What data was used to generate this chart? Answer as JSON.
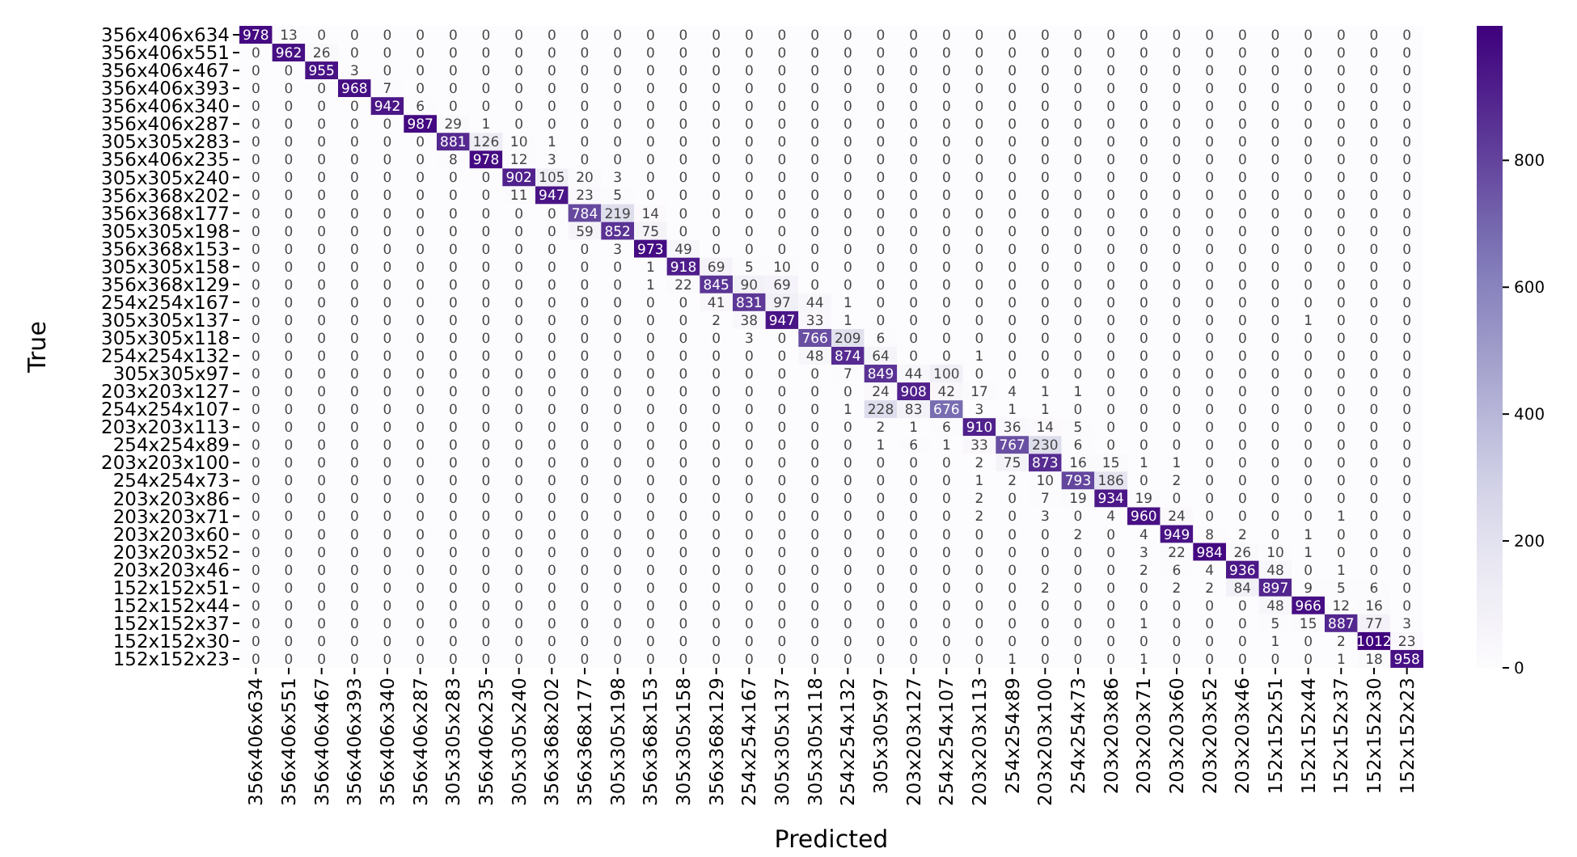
{
  "chart_data": {
    "type": "heatmap",
    "xlabel": "Predicted",
    "ylabel": "True",
    "categories": [
      "356x406x634",
      "356x406x551",
      "356x406x467",
      "356x406x393",
      "356x406x340",
      "356x406x287",
      "305x305x283",
      "356x406x235",
      "305x305x240",
      "356x368x202",
      "356x368x177",
      "305x305x198",
      "356x368x153",
      "305x305x158",
      "356x368x129",
      "254x254x167",
      "305x305x137",
      "305x305x118",
      "254x254x132",
      "305x305x97",
      "203x203x127",
      "254x254x107",
      "203x203x113",
      "254x254x89",
      "203x203x100",
      "254x254x73",
      "203x203x86",
      "203x203x71",
      "203x203x60",
      "203x203x52",
      "203x203x46",
      "152x152x51",
      "152x152x44",
      "152x152x37",
      "152x152x30",
      "152x152x23"
    ],
    "y_categories": [
      "356x406x634",
      "356x406x551",
      "356x406x467",
      "356x406x393",
      "356x406x340",
      "356x406x287",
      "305x305x283",
      "356x406x235",
      "305x305x240",
      "356x368x202",
      "356x368x177",
      "305x305x198",
      "356x368x153",
      "305x305x158",
      "356x368x129",
      "254x254x167",
      "305x305x137",
      "305x305x118",
      "254x254x132",
      "305x305x97",
      "203x203x127",
      "254x254x107",
      "203x203x113",
      "254x254x89",
      "203x203x100",
      "254x254x73",
      "203x203x86",
      "203x203x71",
      "203x203x60",
      "203x203x52",
      "203x203x46",
      "152x152x51",
      "152x152x44",
      "152x152x37",
      "152x152x30",
      "152x152x23"
    ],
    "cells": [
      [
        978,
        13,
        0,
        0,
        0,
        0,
        0,
        0,
        0,
        0,
        0,
        0,
        0,
        0,
        0,
        0,
        0,
        0,
        0,
        0,
        0,
        0,
        0,
        0,
        0,
        0,
        0,
        0,
        0,
        0,
        0,
        0,
        0,
        0,
        0,
        0
      ],
      [
        0,
        962,
        26,
        0,
        0,
        0,
        0,
        0,
        0,
        0,
        0,
        0,
        0,
        0,
        0,
        0,
        0,
        0,
        0,
        0,
        0,
        0,
        0,
        0,
        0,
        0,
        0,
        0,
        0,
        0,
        0,
        0,
        0,
        0,
        0,
        0
      ],
      [
        0,
        0,
        955,
        3,
        0,
        0,
        0,
        0,
        0,
        0,
        0,
        0,
        0,
        0,
        0,
        0,
        0,
        0,
        0,
        0,
        0,
        0,
        0,
        0,
        0,
        0,
        0,
        0,
        0,
        0,
        0,
        0,
        0,
        0,
        0,
        0
      ],
      [
        0,
        0,
        0,
        968,
        7,
        0,
        0,
        0,
        0,
        0,
        0,
        0,
        0,
        0,
        0,
        0,
        0,
        0,
        0,
        0,
        0,
        0,
        0,
        0,
        0,
        0,
        0,
        0,
        0,
        0,
        0,
        0,
        0,
        0,
        0,
        0
      ],
      [
        0,
        0,
        0,
        0,
        942,
        6,
        0,
        0,
        0,
        0,
        0,
        0,
        0,
        0,
        0,
        0,
        0,
        0,
        0,
        0,
        0,
        0,
        0,
        0,
        0,
        0,
        0,
        0,
        0,
        0,
        0,
        0,
        0,
        0,
        0,
        0
      ],
      [
        0,
        0,
        0,
        0,
        0,
        987,
        29,
        1,
        0,
        0,
        0,
        0,
        0,
        0,
        0,
        0,
        0,
        0,
        0,
        0,
        0,
        0,
        0,
        0,
        0,
        0,
        0,
        0,
        0,
        0,
        0,
        0,
        0,
        0,
        0,
        0
      ],
      [
        0,
        0,
        0,
        0,
        0,
        0,
        881,
        126,
        10,
        1,
        0,
        0,
        0,
        0,
        0,
        0,
        0,
        0,
        0,
        0,
        0,
        0,
        0,
        0,
        0,
        0,
        0,
        0,
        0,
        0,
        0,
        0,
        0,
        0,
        0,
        0
      ],
      [
        0,
        0,
        0,
        0,
        0,
        0,
        8,
        978,
        12,
        3,
        0,
        0,
        0,
        0,
        0,
        0,
        0,
        0,
        0,
        0,
        0,
        0,
        0,
        0,
        0,
        0,
        0,
        0,
        0,
        0,
        0,
        0,
        0,
        0,
        0,
        0
      ],
      [
        0,
        0,
        0,
        0,
        0,
        0,
        0,
        0,
        902,
        105,
        20,
        3,
        0,
        0,
        0,
        0,
        0,
        0,
        0,
        0,
        0,
        0,
        0,
        0,
        0,
        0,
        0,
        0,
        0,
        0,
        0,
        0,
        0,
        0,
        0,
        0
      ],
      [
        0,
        0,
        0,
        0,
        0,
        0,
        0,
        0,
        11,
        947,
        23,
        5,
        0,
        0,
        0,
        0,
        0,
        0,
        0,
        0,
        0,
        0,
        0,
        0,
        0,
        0,
        0,
        0,
        0,
        0,
        0,
        0,
        0,
        0,
        0,
        0
      ],
      [
        0,
        0,
        0,
        0,
        0,
        0,
        0,
        0,
        0,
        0,
        784,
        219,
        14,
        0,
        0,
        0,
        0,
        0,
        0,
        0,
        0,
        0,
        0,
        0,
        0,
        0,
        0,
        0,
        0,
        0,
        0,
        0,
        0,
        0,
        0,
        0
      ],
      [
        0,
        0,
        0,
        0,
        0,
        0,
        0,
        0,
        0,
        0,
        59,
        852,
        75,
        0,
        0,
        0,
        0,
        0,
        0,
        0,
        0,
        0,
        0,
        0,
        0,
        0,
        0,
        0,
        0,
        0,
        0,
        0,
        0,
        0,
        0,
        0
      ],
      [
        0,
        0,
        0,
        0,
        0,
        0,
        0,
        0,
        0,
        0,
        0,
        3,
        973,
        49,
        0,
        0,
        0,
        0,
        0,
        0,
        0,
        0,
        0,
        0,
        0,
        0,
        0,
        0,
        0,
        0,
        0,
        0,
        0,
        0,
        0,
        0
      ],
      [
        0,
        0,
        0,
        0,
        0,
        0,
        0,
        0,
        0,
        0,
        0,
        0,
        1,
        918,
        69,
        5,
        10,
        0,
        0,
        0,
        0,
        0,
        0,
        0,
        0,
        0,
        0,
        0,
        0,
        0,
        0,
        0,
        0,
        0,
        0,
        0
      ],
      [
        0,
        0,
        0,
        0,
        0,
        0,
        0,
        0,
        0,
        0,
        0,
        0,
        1,
        22,
        845,
        90,
        69,
        0,
        0,
        0,
        0,
        0,
        0,
        0,
        0,
        0,
        0,
        0,
        0,
        0,
        0,
        0,
        0,
        0,
        0,
        0
      ],
      [
        0,
        0,
        0,
        0,
        0,
        0,
        0,
        0,
        0,
        0,
        0,
        0,
        0,
        0,
        41,
        831,
        97,
        44,
        1,
        0,
        0,
        0,
        0,
        0,
        0,
        0,
        0,
        0,
        0,
        0,
        0,
        0,
        0,
        0,
        0,
        0
      ],
      [
        0,
        0,
        0,
        0,
        0,
        0,
        0,
        0,
        0,
        0,
        0,
        0,
        0,
        0,
        2,
        38,
        947,
        33,
        1,
        0,
        0,
        0,
        0,
        0,
        0,
        0,
        0,
        0,
        0,
        0,
        0,
        0,
        1,
        0,
        0,
        0
      ],
      [
        0,
        0,
        0,
        0,
        0,
        0,
        0,
        0,
        0,
        0,
        0,
        0,
        0,
        0,
        0,
        3,
        0,
        766,
        209,
        6,
        0,
        0,
        0,
        0,
        0,
        0,
        0,
        0,
        0,
        0,
        0,
        0,
        0,
        0,
        0,
        0
      ],
      [
        0,
        0,
        0,
        0,
        0,
        0,
        0,
        0,
        0,
        0,
        0,
        0,
        0,
        0,
        0,
        0,
        0,
        48,
        874,
        64,
        0,
        0,
        1,
        0,
        0,
        0,
        0,
        0,
        0,
        0,
        0,
        0,
        0,
        0,
        0,
        0
      ],
      [
        0,
        0,
        0,
        0,
        0,
        0,
        0,
        0,
        0,
        0,
        0,
        0,
        0,
        0,
        0,
        0,
        0,
        0,
        7,
        849,
        44,
        100,
        0,
        0,
        0,
        0,
        0,
        0,
        0,
        0,
        0,
        0,
        0,
        0,
        0,
        0
      ],
      [
        0,
        0,
        0,
        0,
        0,
        0,
        0,
        0,
        0,
        0,
        0,
        0,
        0,
        0,
        0,
        0,
        0,
        0,
        0,
        24,
        908,
        42,
        17,
        4,
        1,
        1,
        0,
        0,
        0,
        0,
        0,
        0,
        0,
        0,
        0,
        0
      ],
      [
        0,
        0,
        0,
        0,
        0,
        0,
        0,
        0,
        0,
        0,
        0,
        0,
        0,
        0,
        0,
        0,
        0,
        0,
        1,
        228,
        83,
        676,
        3,
        1,
        1,
        0,
        0,
        0,
        0,
        0,
        0,
        0,
        0,
        0,
        0,
        0
      ],
      [
        0,
        0,
        0,
        0,
        0,
        0,
        0,
        0,
        0,
        0,
        0,
        0,
        0,
        0,
        0,
        0,
        0,
        0,
        0,
        2,
        1,
        6,
        910,
        36,
        14,
        5,
        0,
        0,
        0,
        0,
        0,
        0,
        0,
        0,
        0,
        0
      ],
      [
        0,
        0,
        0,
        0,
        0,
        0,
        0,
        0,
        0,
        0,
        0,
        0,
        0,
        0,
        0,
        0,
        0,
        0,
        0,
        1,
        6,
        1,
        33,
        767,
        230,
        6,
        0,
        0,
        0,
        0,
        0,
        0,
        0,
        0,
        0,
        0
      ],
      [
        0,
        0,
        0,
        0,
        0,
        0,
        0,
        0,
        0,
        0,
        0,
        0,
        0,
        0,
        0,
        0,
        0,
        0,
        0,
        0,
        0,
        0,
        2,
        75,
        873,
        16,
        15,
        1,
        1,
        0,
        0,
        0,
        0,
        0,
        0,
        0
      ],
      [
        0,
        0,
        0,
        0,
        0,
        0,
        0,
        0,
        0,
        0,
        0,
        0,
        0,
        0,
        0,
        0,
        0,
        0,
        0,
        0,
        0,
        0,
        1,
        2,
        10,
        793,
        186,
        0,
        2,
        0,
        0,
        0,
        0,
        0,
        0,
        0
      ],
      [
        0,
        0,
        0,
        0,
        0,
        0,
        0,
        0,
        0,
        0,
        0,
        0,
        0,
        0,
        0,
        0,
        0,
        0,
        0,
        0,
        0,
        0,
        2,
        0,
        7,
        19,
        934,
        19,
        0,
        0,
        0,
        0,
        0,
        0,
        0,
        0
      ],
      [
        0,
        0,
        0,
        0,
        0,
        0,
        0,
        0,
        0,
        0,
        0,
        0,
        0,
        0,
        0,
        0,
        0,
        0,
        0,
        0,
        0,
        0,
        2,
        0,
        3,
        0,
        4,
        960,
        24,
        0,
        0,
        0,
        0,
        1,
        0,
        0
      ],
      [
        0,
        0,
        0,
        0,
        0,
        0,
        0,
        0,
        0,
        0,
        0,
        0,
        0,
        0,
        0,
        0,
        0,
        0,
        0,
        0,
        0,
        0,
        0,
        0,
        0,
        2,
        0,
        4,
        949,
        8,
        2,
        0,
        1,
        0,
        0,
        0
      ],
      [
        0,
        0,
        0,
        0,
        0,
        0,
        0,
        0,
        0,
        0,
        0,
        0,
        0,
        0,
        0,
        0,
        0,
        0,
        0,
        0,
        0,
        0,
        0,
        0,
        0,
        0,
        0,
        3,
        22,
        984,
        26,
        10,
        1,
        0,
        0,
        0
      ],
      [
        0,
        0,
        0,
        0,
        0,
        0,
        0,
        0,
        0,
        0,
        0,
        0,
        0,
        0,
        0,
        0,
        0,
        0,
        0,
        0,
        0,
        0,
        0,
        0,
        0,
        0,
        0,
        2,
        6,
        4,
        936,
        48,
        0,
        1,
        0,
        0
      ],
      [
        0,
        0,
        0,
        0,
        0,
        0,
        0,
        0,
        0,
        0,
        0,
        0,
        0,
        0,
        0,
        0,
        0,
        0,
        0,
        0,
        0,
        0,
        0,
        0,
        2,
        0,
        0,
        0,
        2,
        2,
        84,
        897,
        9,
        5,
        6,
        0
      ],
      [
        0,
        0,
        0,
        0,
        0,
        0,
        0,
        0,
        0,
        0,
        0,
        0,
        0,
        0,
        0,
        0,
        0,
        0,
        0,
        0,
        0,
        0,
        0,
        0,
        0,
        0,
        0,
        0,
        0,
        0,
        0,
        48,
        966,
        12,
        16,
        0
      ],
      [
        0,
        0,
        0,
        0,
        0,
        0,
        0,
        0,
        0,
        0,
        0,
        0,
        0,
        0,
        0,
        0,
        0,
        0,
        0,
        0,
        0,
        0,
        0,
        0,
        0,
        0,
        0,
        1,
        0,
        0,
        0,
        5,
        15,
        887,
        77,
        3
      ],
      [
        0,
        0,
        0,
        0,
        0,
        0,
        0,
        0,
        0,
        0,
        0,
        0,
        0,
        0,
        0,
        0,
        0,
        0,
        0,
        0,
        0,
        0,
        0,
        0,
        0,
        0,
        0,
        0,
        0,
        0,
        0,
        1,
        0,
        2,
        1012,
        23
      ],
      [
        0,
        0,
        0,
        0,
        0,
        0,
        0,
        0,
        0,
        0,
        0,
        0,
        0,
        0,
        0,
        0,
        0,
        0,
        0,
        0,
        0,
        0,
        0,
        1,
        0,
        0,
        0,
        1,
        0,
        0,
        0,
        0,
        0,
        1,
        18,
        958
      ]
    ],
    "clim": [
      0,
      1012
    ],
    "cticks": [
      0,
      200,
      400,
      600,
      800
    ],
    "data_labels": true
  }
}
